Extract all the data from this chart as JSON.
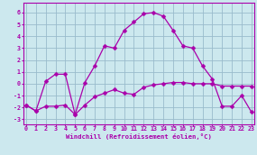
{
  "xlabel": "Windchill (Refroidissement éolien,°C)",
  "bg_color": "#cce8ee",
  "line_color": "#aa00aa",
  "grid_color": "#99bbcc",
  "spine_color": "#aa00aa",
  "x_ticks": [
    0,
    1,
    2,
    3,
    4,
    5,
    6,
    7,
    8,
    9,
    10,
    11,
    12,
    13,
    14,
    15,
    16,
    17,
    18,
    19,
    20,
    21,
    22,
    23
  ],
  "y_ticks": [
    -3,
    -2,
    -1,
    0,
    1,
    2,
    3,
    4,
    5,
    6
  ],
  "ylim": [
    -3.4,
    6.8
  ],
  "xlim": [
    -0.3,
    23.3
  ],
  "series1_x": [
    0,
    1,
    2,
    3,
    4,
    5,
    6,
    7,
    8,
    9,
    10,
    11,
    12,
    13,
    14,
    15,
    16,
    17,
    18,
    19,
    20,
    21,
    22,
    23
  ],
  "series1_y": [
    -1.8,
    -2.3,
    -1.9,
    -1.9,
    -1.8,
    -2.6,
    -1.8,
    -1.1,
    -0.8,
    -0.5,
    -0.8,
    -0.9,
    -0.3,
    -0.1,
    0.0,
    0.1,
    0.1,
    0.0,
    0.0,
    0.0,
    -0.2,
    -0.2,
    -0.2,
    -0.2
  ],
  "series2_x": [
    0,
    1,
    2,
    3,
    4,
    5,
    6,
    7,
    8,
    9,
    10,
    11,
    12,
    13,
    14,
    15,
    16,
    17,
    18,
    19,
    20,
    21,
    22,
    23
  ],
  "series2_y": [
    -1.8,
    -2.3,
    0.2,
    0.8,
    0.8,
    -2.6,
    0.1,
    1.5,
    3.2,
    3.0,
    4.5,
    5.2,
    5.9,
    6.0,
    5.7,
    4.5,
    3.2,
    3.0,
    1.5,
    0.4,
    -1.9,
    -1.9,
    -1.0,
    -2.4
  ],
  "tick_fontsize": 4.8,
  "label_fontsize": 5.2,
  "linewidth": 0.9,
  "markersize": 2.5
}
